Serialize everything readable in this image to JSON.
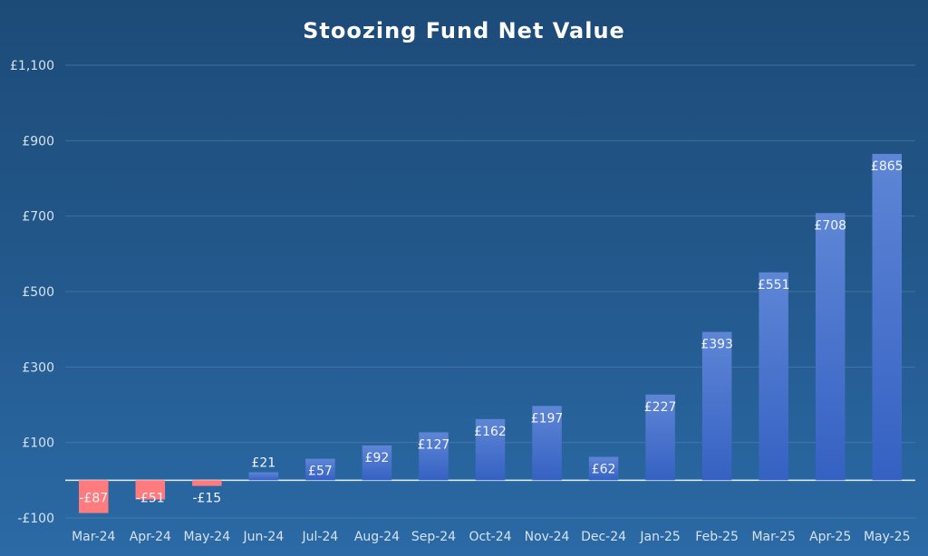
{
  "chart_data": {
    "type": "bar",
    "title": "Stoozing Fund Net Value",
    "categories": [
      "Mar-24",
      "Apr-24",
      "May-24",
      "Jun-24",
      "Jul-24",
      "Aug-24",
      "Sep-24",
      "Oct-24",
      "Nov-24",
      "Dec-24",
      "Jan-25",
      "Feb-25",
      "Mar-25",
      "Apr-25",
      "May-25"
    ],
    "values": [
      -87,
      -51,
      -15,
      21,
      57,
      92,
      127,
      162,
      197,
      62,
      227,
      393,
      551,
      708,
      865
    ],
    "data_labels": [
      "-£87",
      "-£51",
      "-£15",
      "£21",
      "£57",
      "£92",
      "£127",
      "£162",
      "£197",
      "£62",
      "£227",
      "£393",
      "£551",
      "£708",
      "£865"
    ],
    "ylim": [
      -100,
      1100
    ],
    "yticks": [
      -100,
      100,
      300,
      500,
      700,
      900,
      1100
    ],
    "ytick_labels": [
      "-£100",
      "£100",
      "£300",
      "£500",
      "£700",
      "£900",
      "£1,100"
    ],
    "xlabel": "",
    "ylabel": "",
    "grid": true,
    "legend": "none",
    "colors": {
      "positive_top": "#5e86d6",
      "positive_bottom": "#3561c2",
      "negative": "#ff7b7e"
    }
  }
}
